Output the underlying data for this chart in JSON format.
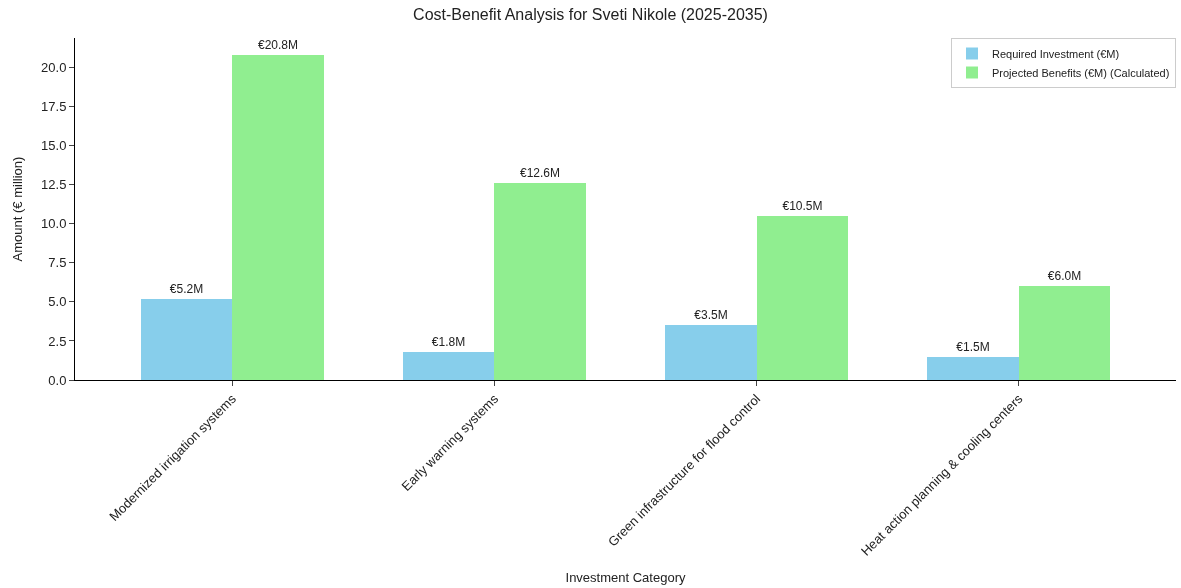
{
  "chart_data": {
    "type": "bar",
    "title": "Cost-Benefit Analysis for Sveti Nikole (2025-2035)",
    "xlabel": "Investment Category",
    "ylabel": "Amount (€ million)",
    "categories": [
      "Modernized irrigation systems",
      "Early warning systems",
      "Green infrastructure for flood control",
      "Heat action planning & cooling centers"
    ],
    "series": [
      {
        "name": "Required Investment (€M)",
        "color": "#87ceeb",
        "values": [
          5.2,
          1.8,
          3.5,
          1.5
        ],
        "value_labels": [
          "€5.2M",
          "€1.8M",
          "€3.5M",
          "€1.5M"
        ]
      },
      {
        "name": "Projected Benefits (€M) (Calculated)",
        "color": "#90ee90",
        "values": [
          20.8,
          12.6,
          10.5,
          6.0
        ],
        "value_labels": [
          "€20.8M",
          "€12.6M",
          "€10.5M",
          "€6.0M"
        ]
      }
    ],
    "ylim": [
      0,
      21.9
    ],
    "yticks": [
      {
        "value": 0,
        "label": "0.0"
      },
      {
        "value": 2.5,
        "label": "2.5"
      },
      {
        "value": 5,
        "label": "5.0"
      },
      {
        "value": 7.5,
        "label": "7.5"
      },
      {
        "value": 10,
        "label": "10.0"
      },
      {
        "value": 12.5,
        "label": "12.5"
      },
      {
        "value": 15,
        "label": "15.0"
      },
      {
        "value": 17.5,
        "label": "17.5"
      },
      {
        "value": 20,
        "label": "20.0"
      }
    ],
    "legend": "top right"
  }
}
